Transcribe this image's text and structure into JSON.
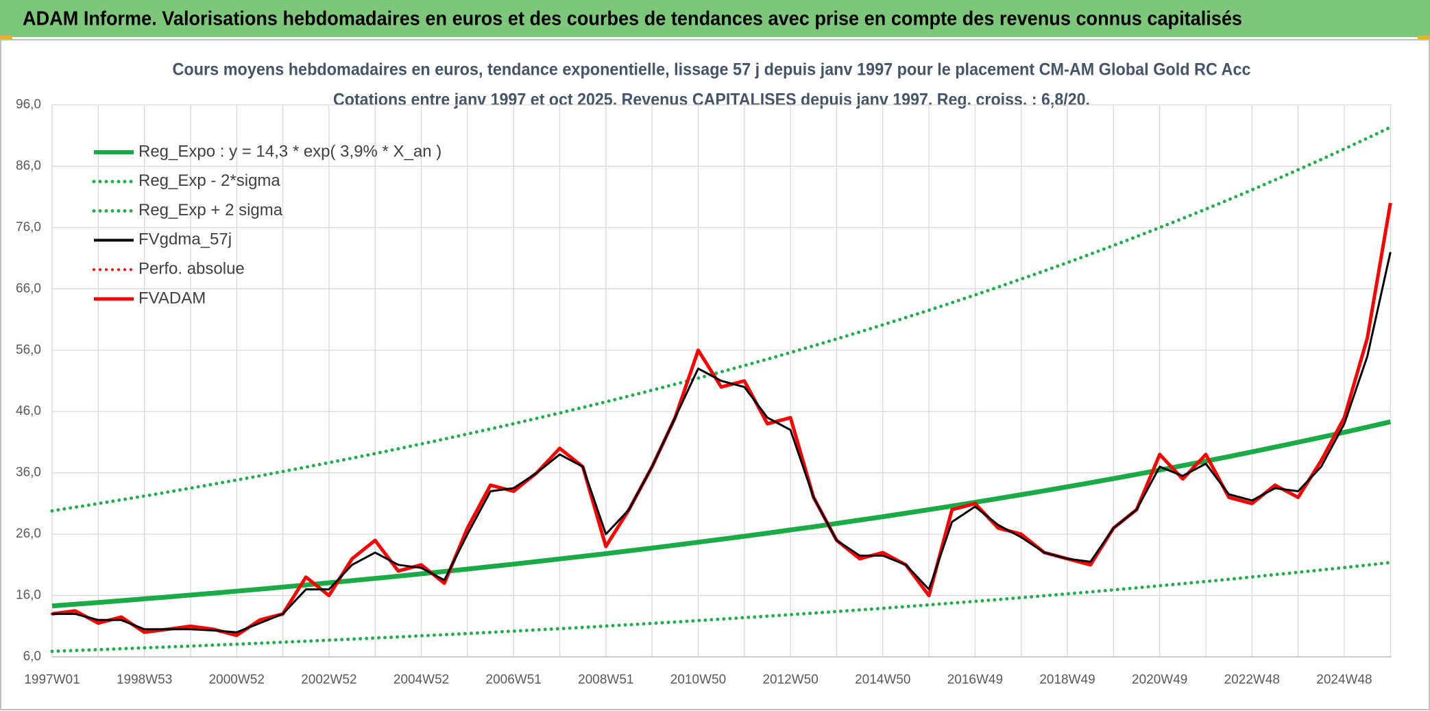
{
  "header": {
    "title": "ADAM Informe. Valorisations hebdomadaires en euros et des courbes de tendances avec prise en compte des revenus connus capitalisés"
  },
  "chart_data": {
    "type": "line",
    "title": "Cours moyens hebdomadaires en euros, tendance exponentielle, lissage 57 j depuis janv 1997 pour le placement CM-AM Global Gold RC Acc",
    "subtitle": "Cotations entre janv 1997 et oct 2025. Revenus CAPITALISES depuis janv 1997. Reg. croiss. : 6,8/20.",
    "categories": [
      "1997W01",
      null,
      null,
      null,
      "1998W53",
      null,
      null,
      null,
      "2000W52",
      null,
      null,
      null,
      "2002W52",
      null,
      null,
      null,
      "2004W52",
      null,
      null,
      null,
      "2006W51",
      null,
      null,
      null,
      "2008W51",
      null,
      null,
      null,
      "2010W50",
      null,
      null,
      null,
      "2012W50",
      null,
      null,
      null,
      "2014W50",
      null,
      null,
      null,
      "2016W49",
      null,
      null,
      null,
      "2018W49",
      null,
      null,
      null,
      "2020W49",
      null,
      null,
      null,
      "2022W48",
      null,
      null,
      null,
      "2024W48",
      null,
      null
    ],
    "ylim": [
      6,
      96
    ],
    "yticks": [
      {
        "value": 6,
        "label": "6,0"
      },
      {
        "value": 16,
        "label": "16,0"
      },
      {
        "value": 26,
        "label": "26,0"
      },
      {
        "value": 36,
        "label": "36,0"
      },
      {
        "value": 46,
        "label": "46,0"
      },
      {
        "value": 56,
        "label": "56,0"
      },
      {
        "value": 66,
        "label": "66,0"
      },
      {
        "value": 76,
        "label": "76,0"
      },
      {
        "value": 86,
        "label": "86,0"
      },
      {
        "value": 96,
        "label": "96,0"
      }
    ],
    "grid": true,
    "legend": "upper left",
    "series": [
      {
        "name": "Reg_Expo : y = 14,3 * exp( 3,9% *  X_an )",
        "color": "#1aab47",
        "style": "solid",
        "values": [
          14.3,
          14.58,
          14.87,
          15.16,
          15.46,
          15.76,
          16.07,
          16.39,
          16.71,
          17.04,
          17.38,
          17.72,
          18.07,
          18.43,
          18.79,
          19.16,
          19.54,
          19.92,
          20.31,
          20.71,
          21.12,
          21.54,
          21.96,
          22.39,
          22.83,
          23.28,
          23.74,
          24.21,
          24.69,
          25.17,
          25.67,
          26.17,
          26.69,
          27.21,
          27.75,
          28.3,
          28.85,
          29.42,
          30.0,
          30.59,
          31.2,
          31.81,
          32.44,
          33.08,
          33.73,
          34.39,
          35.07,
          35.76,
          36.46,
          37.18,
          37.91,
          38.66,
          39.42,
          40.2,
          40.99,
          41.8,
          42.62,
          43.46,
          44.32
        ]
      },
      {
        "name": "Reg_Exp - 2*sigma",
        "color": "#1fb04b",
        "style": "dotted",
        "values": [
          6.9,
          7.04,
          7.17,
          7.32,
          7.46,
          7.61,
          7.76,
          7.91,
          8.06,
          8.22,
          8.39,
          8.55,
          8.72,
          8.89,
          9.07,
          9.24,
          9.43,
          9.61,
          9.8,
          9.99,
          10.19,
          10.39,
          10.6,
          10.8,
          11.02,
          11.23,
          11.46,
          11.68,
          11.91,
          12.15,
          12.39,
          12.63,
          12.88,
          13.13,
          13.39,
          13.65,
          13.92,
          14.2,
          14.48,
          14.76,
          15.05,
          15.35,
          15.65,
          15.96,
          16.27,
          16.59,
          16.92,
          17.25,
          17.59,
          17.94,
          18.29,
          18.65,
          19.02,
          19.4,
          19.78,
          20.17,
          20.56,
          20.96,
          21.38
        ]
      },
      {
        "name": "Reg_Exp + 2 sigma",
        "color": "#1fb04b",
        "style": "dotted",
        "values": [
          29.8,
          30.39,
          30.99,
          31.6,
          32.22,
          32.85,
          33.5,
          34.16,
          34.83,
          35.52,
          36.22,
          36.93,
          37.66,
          38.4,
          39.15,
          39.92,
          40.71,
          41.51,
          42.33,
          43.16,
          44.01,
          44.88,
          45.76,
          46.66,
          47.58,
          48.52,
          49.48,
          50.45,
          51.44,
          52.46,
          53.49,
          54.54,
          55.62,
          56.71,
          57.83,
          58.97,
          60.13,
          61.32,
          62.52,
          63.75,
          65.01,
          66.29,
          67.6,
          68.93,
          70.28,
          71.67,
          73.08,
          74.52,
          75.99,
          77.48,
          79.01,
          80.56,
          82.15,
          83.77,
          85.42,
          87.1,
          88.82,
          90.57,
          92.35
        ]
      },
      {
        "name": "FVgdma_57j",
        "color": "#000000",
        "style": "solid",
        "values": [
          13,
          13,
          12,
          12,
          10.5,
          10.5,
          10.5,
          10.3,
          10,
          11.5,
          13,
          17,
          17,
          21,
          23,
          21,
          20.5,
          18.5,
          26,
          33,
          33.5,
          36,
          39,
          37,
          26,
          30,
          37,
          45,
          53,
          51,
          50,
          45,
          43,
          32,
          25,
          22.5,
          22.5,
          21,
          17,
          28,
          30.5,
          27.5,
          25.5,
          23,
          22,
          21.5,
          27,
          30,
          37,
          35.5,
          37.5,
          32.5,
          31.5,
          33.5,
          33,
          37,
          44,
          55,
          72
        ]
      },
      {
        "name": "Perfo. absolue",
        "color": "#ff0000",
        "style": "dotted",
        "values": [
          13,
          13.5,
          11.5,
          12.5,
          10,
          10.5,
          11,
          10.5,
          9.5,
          12,
          13,
          19,
          16,
          22,
          25,
          20,
          21,
          18,
          27,
          34,
          33,
          36,
          40,
          37,
          24,
          30,
          37,
          45,
          56,
          50,
          51,
          44,
          45,
          32,
          25,
          22,
          23,
          21,
          16,
          30,
          31,
          27,
          26,
          23,
          22,
          21,
          27,
          30,
          39,
          35,
          39,
          32,
          31,
          34,
          32,
          38,
          45,
          58,
          80
        ]
      },
      {
        "name": "FVADAM",
        "color": "#ff0000",
        "style": "solid",
        "values": [
          13,
          13.5,
          11.5,
          12.5,
          10,
          10.5,
          11,
          10.5,
          9.5,
          12,
          13,
          19,
          16,
          22,
          25,
          20,
          21,
          18,
          27,
          34,
          33,
          36,
          40,
          37,
          24,
          30,
          37,
          45,
          56,
          50,
          51,
          44,
          45,
          32,
          25,
          22,
          23,
          21,
          16,
          30,
          31,
          27,
          26,
          23,
          22,
          21,
          27,
          30,
          39,
          35,
          39,
          32,
          31,
          34,
          32,
          38,
          45,
          58,
          80
        ]
      }
    ]
  }
}
